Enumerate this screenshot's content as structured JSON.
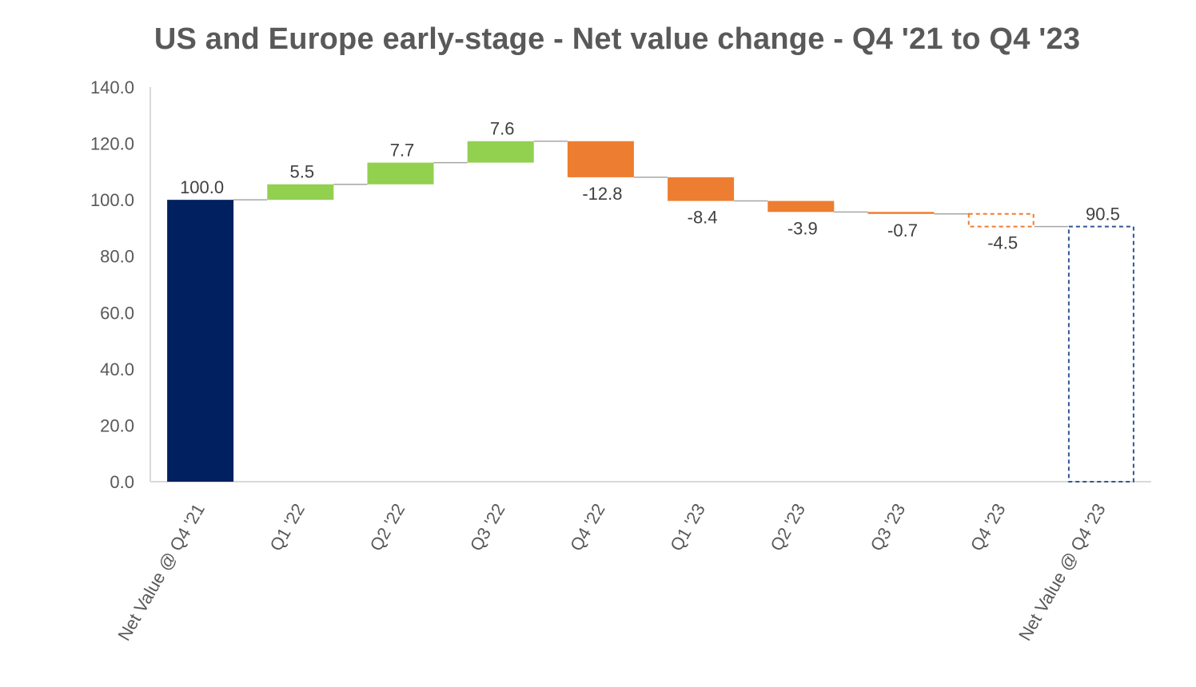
{
  "chart_data": {
    "type": "waterfall",
    "title": "US and Europe early-stage - Net value change - Q4 '21 to Q4 '23",
    "xlabel": "",
    "ylabel": "",
    "ylim": [
      0,
      140
    ],
    "yticks": [
      "0.0",
      "20.0",
      "40.0",
      "60.0",
      "80.0",
      "100.0",
      "120.0",
      "140.0"
    ],
    "categories": [
      "Net Value @ Q4 '21",
      "Q1 '22",
      "Q2 '22",
      "Q3 '22",
      "Q4 '22",
      "Q1 '23",
      "Q2 '23",
      "Q3 '23",
      "Q4 '23",
      "Net Value @ Q4 '23"
    ],
    "values": [
      100.0,
      5.5,
      7.7,
      7.6,
      -12.8,
      -8.4,
      -3.9,
      -0.7,
      -4.5,
      90.5
    ],
    "labels": [
      "100.0",
      "5.5",
      "7.7",
      "7.6",
      "-12.8",
      "-8.4",
      "-3.9",
      "-0.7",
      "-4.5",
      "90.5"
    ],
    "kinds": [
      "total",
      "delta",
      "delta",
      "delta",
      "delta",
      "delta",
      "delta",
      "delta",
      "delta",
      "total"
    ],
    "styles": [
      "solid",
      "solid",
      "solid",
      "solid",
      "solid",
      "solid",
      "solid",
      "solid",
      "dashed",
      "dashed"
    ],
    "grid": false,
    "legend": "none",
    "colors": {
      "total": "#002060",
      "increase": "#92D050",
      "decrease": "#ED7D31",
      "connector": "#a6a6a6",
      "axis": "#d9d9d9",
      "final_outline": "#2F5597"
    }
  }
}
